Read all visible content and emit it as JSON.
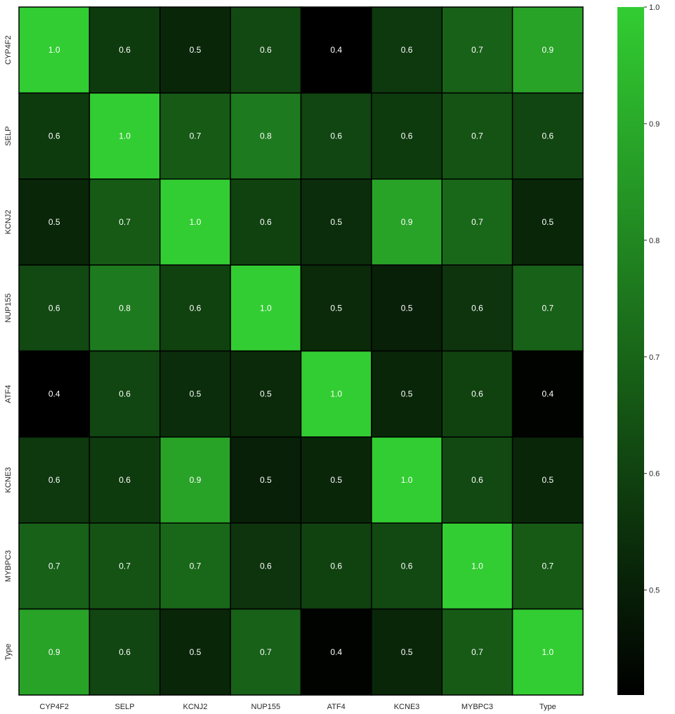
{
  "chart_data": {
    "type": "heatmap",
    "title": "",
    "xlabel": "",
    "ylabel": "",
    "row_labels": [
      "CYP4F2",
      "SELP",
      "KCNJ2",
      "NUP155",
      "ATF4",
      "KCNE3",
      "MYBPC3",
      "Type"
    ],
    "col_labels": [
      "CYP4F2",
      "SELP",
      "KCNJ2",
      "NUP155",
      "ATF4",
      "KCNE3",
      "MYBPC3",
      "Type"
    ],
    "values": [
      [
        1.0,
        0.58,
        0.52,
        0.62,
        0.41,
        0.57,
        0.69,
        0.88
      ],
      [
        0.58,
        1.0,
        0.67,
        0.76,
        0.61,
        0.58,
        0.65,
        0.61
      ],
      [
        0.52,
        0.67,
        1.0,
        0.6,
        0.54,
        0.88,
        0.71,
        0.52
      ],
      [
        0.62,
        0.76,
        0.6,
        1.0,
        0.53,
        0.5,
        0.56,
        0.69
      ],
      [
        0.41,
        0.61,
        0.54,
        0.53,
        1.0,
        0.52,
        0.6,
        0.42
      ],
      [
        0.57,
        0.58,
        0.88,
        0.5,
        0.52,
        1.0,
        0.62,
        0.52
      ],
      [
        0.69,
        0.65,
        0.71,
        0.56,
        0.6,
        0.62,
        1.0,
        0.67
      ],
      [
        0.88,
        0.61,
        0.52,
        0.69,
        0.42,
        0.52,
        0.67,
        1.0
      ]
    ],
    "annotations": [
      [
        "1.0",
        "0.6",
        "0.5",
        "0.6",
        "0.4",
        "0.6",
        "0.7",
        "0.9"
      ],
      [
        "0.6",
        "1.0",
        "0.7",
        "0.8",
        "0.6",
        "0.6",
        "0.7",
        "0.6"
      ],
      [
        "0.5",
        "0.7",
        "1.0",
        "0.6",
        "0.5",
        "0.9",
        "0.7",
        "0.5"
      ],
      [
        "0.6",
        "0.8",
        "0.6",
        "1.0",
        "0.5",
        "0.5",
        "0.6",
        "0.7"
      ],
      [
        "0.4",
        "0.6",
        "0.5",
        "0.5",
        "1.0",
        "0.5",
        "0.6",
        "0.4"
      ],
      [
        "0.6",
        "0.6",
        "0.9",
        "0.5",
        "0.5",
        "1.0",
        "0.6",
        "0.5"
      ],
      [
        "0.7",
        "0.7",
        "0.7",
        "0.6",
        "0.6",
        "0.6",
        "1.0",
        "0.7"
      ],
      [
        "0.9",
        "0.6",
        "0.5",
        "0.7",
        "0.4",
        "0.5",
        "0.7",
        "1.0"
      ]
    ],
    "colormap": {
      "low": "#000000",
      "high": "#32cd32"
    },
    "vmin": 0.41,
    "vmax": 1.0,
    "colorbar": {
      "ticks": [
        0.5,
        0.6,
        0.7,
        0.8,
        0.9,
        1.0
      ],
      "tick_labels": [
        "0.5",
        "0.6",
        "0.7",
        "0.8",
        "0.9",
        "1.0"
      ]
    },
    "cell_text_color": "#ffffff",
    "gridline_color": "#000000"
  }
}
